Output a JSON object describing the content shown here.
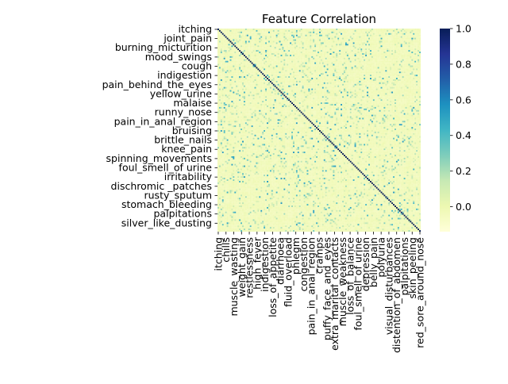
{
  "chart_data": {
    "type": "heatmap",
    "title": "Feature Correlation",
    "xlabel": "",
    "ylabel": "",
    "n_features": 132,
    "diagonal_value": 1.0,
    "value_range": [
      -0.14,
      1.0
    ],
    "colormap": "YlGnBu",
    "colormap_stops": [
      "#ffffd9",
      "#edf8b1",
      "#c7e9b4",
      "#7fcdbb",
      "#41b6c4",
      "#1d91c0",
      "#225ea8",
      "#253494",
      "#081d58"
    ],
    "y_tick_labels": [
      "itching",
      "joint_pain",
      "burning_micturition",
      "mood_swings",
      "cough",
      "indigestion",
      "pain_behind_the_eyes",
      "yellow_urine",
      "malaise",
      "runny_nose",
      "pain_in_anal_region",
      "bruising",
      "brittle_nails",
      "knee_pain",
      "spinning_movements",
      "foul_smell_of urine",
      "irritability",
      "dischromic _patches",
      "rusty_sputum",
      "stomach_bleeding",
      "palpitations",
      "silver_like_dusting"
    ],
    "x_tick_labels": [
      "itching",
      "chills",
      "muscle_wasting",
      "weight_gain",
      "restlessness",
      "high_fever",
      "indigestion",
      "loss_of_appetite",
      "diarrhoea",
      "fluid_overload",
      "phlegm",
      "congestion",
      "pain_in_anal_region",
      "cramps",
      "puffy_face_and_eyes",
      "extra_marital_contacts",
      "muscle_weakness",
      "loss_of_balance",
      "foul_smell_of urine",
      "depression",
      "belly_pain",
      "polyuria",
      "visual_disturbances",
      "distention_of_abdomen",
      "palpitations",
      "skin_peeling",
      "red_sore_around_nose"
    ],
    "colorbar": {
      "ticks": [
        "0.0",
        "0.2",
        "0.4",
        "0.6",
        "0.8",
        "1.0"
      ],
      "tick_values": [
        0.0,
        0.2,
        0.4,
        0.6,
        0.8,
        1.0
      ]
    },
    "grid": false,
    "legend": "none"
  }
}
